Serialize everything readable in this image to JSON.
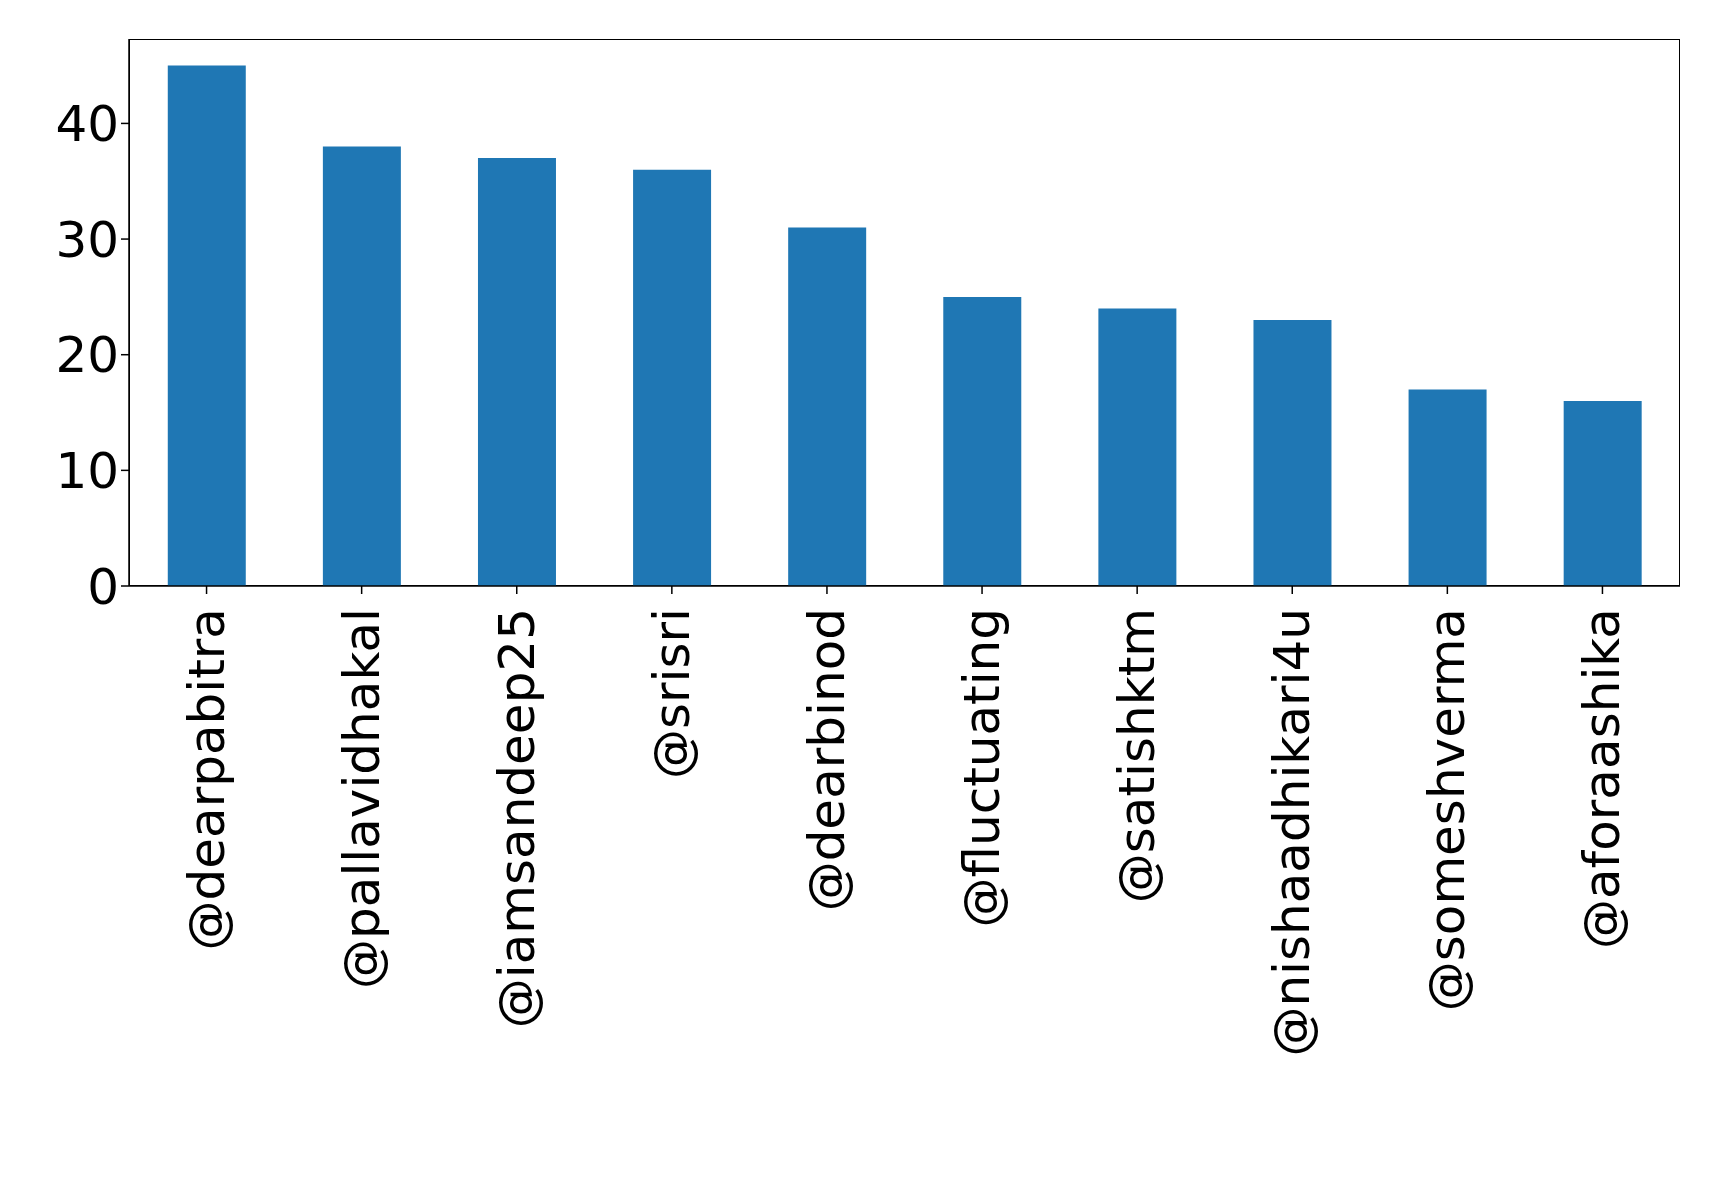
{
  "chart_data": {
    "type": "bar",
    "categories": [
      "@dearpabitra",
      "@pallavidhakal",
      "@iamsandeep25",
      "@srisri",
      "@dearbinod",
      "@fluctuating",
      "@satishktm",
      "@nishaadhikari4u",
      "@someshverma",
      "@aforaashika"
    ],
    "values": [
      45,
      38,
      37,
      36,
      31,
      25,
      24,
      23,
      17,
      16
    ],
    "color": "#1f77b4",
    "ylim": [
      0,
      47.3
    ],
    "yticks": [
      0,
      10,
      20,
      30,
      40
    ],
    "grid": false
  }
}
